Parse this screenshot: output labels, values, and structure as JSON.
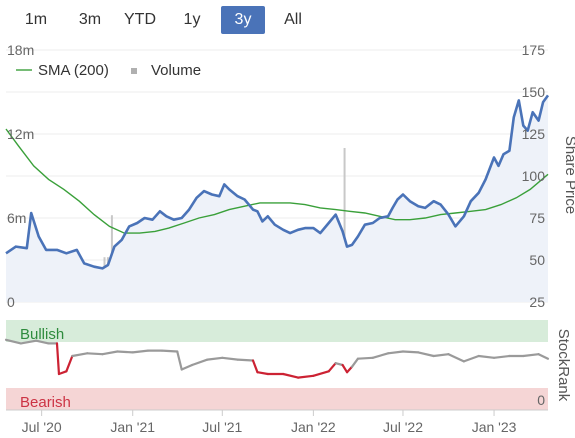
{
  "range_tabs": {
    "items": [
      {
        "label": "1m",
        "active": false
      },
      {
        "label": "3m",
        "active": false
      },
      {
        "label": "YTD",
        "active": false
      },
      {
        "label": "1y",
        "active": false
      },
      {
        "label": "3y",
        "active": true
      },
      {
        "label": "All",
        "active": false
      }
    ]
  },
  "legend": {
    "sma_label": "SMA (200)",
    "volume_label": "Volume"
  },
  "colors": {
    "price_line": "#4a73b8",
    "price_fill": "#eef2f9",
    "sma_line": "#3aa03a",
    "volume_bar": "#c8c8c8",
    "rank_line": "#9a9a9a",
    "rank_low": "#cc2233",
    "bullish_band": "#d7ecda",
    "bearish_band": "#f5d5d5",
    "bullish_text": "#2e8b3d",
    "bearish_text": "#cc3344",
    "active_tab": "#4a73b8"
  },
  "chart_data": [
    {
      "type": "line",
      "title": "",
      "ylabel": "Share Price",
      "ylabel_right": "Share Price",
      "ylabel_left": "Volume",
      "xlabel": "",
      "x_ticks": [
        "Jul '20",
        "Jan '21",
        "Jul '21",
        "Jan '22",
        "Jul '22",
        "Jan '23"
      ],
      "x_tick_dates": [
        "2020-07-01",
        "2021-01-01",
        "2021-07-01",
        "2022-01-01",
        "2022-07-01",
        "2023-01-01"
      ],
      "x_range": [
        "2020-04-20",
        "2023-04-20"
      ],
      "y_ticks_right": [
        25,
        50,
        75,
        100,
        125,
        150,
        175
      ],
      "ylim": [
        25,
        175
      ],
      "y_ticks_left": [
        "0",
        "6m",
        "12m",
        "18m"
      ],
      "ylim_left": [
        0,
        18000000
      ],
      "grid": true,
      "legend_position": "top-left",
      "series": [
        {
          "name": "",
          "role": "price",
          "points": [
            [
              "2020-04-20",
              54
            ],
            [
              "2020-05-10",
              58
            ],
            [
              "2020-06-01",
              57
            ],
            [
              "2020-06-10",
              78
            ],
            [
              "2020-06-25",
              64
            ],
            [
              "2020-07-10",
              56
            ],
            [
              "2020-08-01",
              56
            ],
            [
              "2020-08-20",
              54
            ],
            [
              "2020-09-10",
              56
            ],
            [
              "2020-09-25",
              48
            ],
            [
              "2020-10-15",
              46
            ],
            [
              "2020-11-01",
              45
            ],
            [
              "2020-11-12",
              47
            ],
            [
              "2020-11-25",
              58
            ],
            [
              "2020-12-10",
              62
            ],
            [
              "2020-12-25",
              70
            ],
            [
              "2021-01-10",
              72
            ],
            [
              "2021-01-25",
              75
            ],
            [
              "2021-02-10",
              74
            ],
            [
              "2021-02-25",
              79
            ],
            [
              "2021-03-10",
              76
            ],
            [
              "2021-03-25",
              74
            ],
            [
              "2021-04-10",
              75
            ],
            [
              "2021-04-25",
              80
            ],
            [
              "2021-05-10",
              87
            ],
            [
              "2021-05-25",
              91
            ],
            [
              "2021-06-10",
              89
            ],
            [
              "2021-06-25",
              88
            ],
            [
              "2021-07-05",
              95
            ],
            [
              "2021-07-15",
              92
            ],
            [
              "2021-08-01",
              88
            ],
            [
              "2021-08-15",
              86
            ],
            [
              "2021-09-01",
              80
            ],
            [
              "2021-09-10",
              79
            ],
            [
              "2021-09-20",
              73
            ],
            [
              "2021-10-01",
              76
            ],
            [
              "2021-10-15",
              71
            ],
            [
              "2021-11-01",
              68
            ],
            [
              "2021-11-15",
              66
            ],
            [
              "2021-12-01",
              68
            ],
            [
              "2021-12-15",
              69
            ],
            [
              "2022-01-01",
              69
            ],
            [
              "2022-01-15",
              66
            ],
            [
              "2022-02-01",
              72
            ],
            [
              "2022-02-15",
              77
            ],
            [
              "2022-03-01",
              67
            ],
            [
              "2022-03-10",
              58
            ],
            [
              "2022-03-20",
              59
            ],
            [
              "2022-04-01",
              64
            ],
            [
              "2022-04-15",
              71
            ],
            [
              "2022-05-01",
              72
            ],
            [
              "2022-05-15",
              75
            ],
            [
              "2022-06-01",
              76
            ],
            [
              "2022-06-10",
              81
            ],
            [
              "2022-06-20",
              86
            ],
            [
              "2022-07-01",
              89
            ],
            [
              "2022-07-15",
              85
            ],
            [
              "2022-08-01",
              82
            ],
            [
              "2022-08-15",
              81
            ],
            [
              "2022-09-01",
              85
            ],
            [
              "2022-09-15",
              83
            ],
            [
              "2022-10-01",
              77
            ],
            [
              "2022-10-15",
              70
            ],
            [
              "2022-11-01",
              76
            ],
            [
              "2022-11-15",
              85
            ],
            [
              "2022-12-01",
              90
            ],
            [
              "2022-12-15",
              98
            ],
            [
              "2023-01-01",
              111
            ],
            [
              "2023-01-10",
              106
            ],
            [
              "2023-01-20",
              113
            ],
            [
              "2023-02-01",
              115
            ],
            [
              "2023-02-10",
              135
            ],
            [
              "2023-02-20",
              145
            ],
            [
              "2023-03-01",
              130
            ],
            [
              "2023-03-10",
              127
            ],
            [
              "2023-03-20",
              138
            ],
            [
              "2023-04-01",
              133
            ],
            [
              "2023-04-10",
              144
            ],
            [
              "2023-04-20",
              148
            ]
          ]
        },
        {
          "name": "SMA (200)",
          "role": "sma",
          "points": [
            [
              "2020-04-20",
              128
            ],
            [
              "2020-05-15",
              118
            ],
            [
              "2020-06-15",
              106
            ],
            [
              "2020-07-15",
              98
            ],
            [
              "2020-08-15",
              92
            ],
            [
              "2020-09-15",
              85
            ],
            [
              "2020-10-15",
              77
            ],
            [
              "2020-11-15",
              70
            ],
            [
              "2020-12-15",
              66
            ],
            [
              "2021-01-15",
              66
            ],
            [
              "2021-02-15",
              67
            ],
            [
              "2021-03-15",
              69
            ],
            [
              "2021-04-15",
              72
            ],
            [
              "2021-05-15",
              75
            ],
            [
              "2021-06-15",
              77
            ],
            [
              "2021-07-15",
              80
            ],
            [
              "2021-08-15",
              82
            ],
            [
              "2021-09-15",
              84
            ],
            [
              "2021-10-15",
              84
            ],
            [
              "2021-11-15",
              84
            ],
            [
              "2021-12-15",
              83
            ],
            [
              "2022-01-15",
              81
            ],
            [
              "2022-02-15",
              80
            ],
            [
              "2022-03-15",
              79
            ],
            [
              "2022-04-15",
              78
            ],
            [
              "2022-05-15",
              76
            ],
            [
              "2022-06-15",
              74
            ],
            [
              "2022-07-15",
              74
            ],
            [
              "2022-08-15",
              75
            ],
            [
              "2022-09-15",
              77
            ],
            [
              "2022-10-15",
              78
            ],
            [
              "2022-11-15",
              79
            ],
            [
              "2022-12-15",
              80
            ],
            [
              "2023-01-15",
              83
            ],
            [
              "2023-02-15",
              87
            ],
            [
              "2023-03-15",
              92
            ],
            [
              "2023-04-20",
              101
            ]
          ]
        },
        {
          "name": "Volume",
          "role": "volume",
          "points": [
            [
              "2020-05-20",
              1500000
            ],
            [
              "2020-07-05",
              2500000
            ],
            [
              "2020-09-05",
              1200000
            ],
            [
              "2020-10-20",
              2200000
            ],
            [
              "2020-11-05",
              3200000
            ],
            [
              "2020-11-12",
              3200000
            ],
            [
              "2020-11-20",
              6200000
            ],
            [
              "2020-12-05",
              1300000
            ],
            [
              "2021-03-10",
              1200000
            ],
            [
              "2021-05-10",
              1300000
            ],
            [
              "2021-07-05",
              1500000
            ],
            [
              "2021-08-10",
              1000000
            ],
            [
              "2021-10-15",
              1200000
            ],
            [
              "2021-12-20",
              1400000
            ],
            [
              "2022-02-05",
              1300000
            ],
            [
              "2022-03-05",
              11000000
            ],
            [
              "2022-03-12",
              3500000
            ],
            [
              "2022-04-20",
              1200000
            ],
            [
              "2022-06-20",
              1400000
            ],
            [
              "2022-09-20",
              1000000
            ],
            [
              "2022-11-10",
              1200000
            ],
            [
              "2023-02-05",
              1300000
            ],
            [
              "2023-02-15",
              6800000
            ],
            [
              "2023-02-25",
              3000000
            ],
            [
              "2023-03-10",
              1500000
            ]
          ]
        }
      ]
    },
    {
      "type": "line",
      "title": "",
      "ylabel": "StockRank",
      "ylim": [
        0,
        100
      ],
      "y_ticks_right": [
        0
      ],
      "zones": [
        {
          "label": "Bullish",
          "from": 95,
          "to": 100
        },
        {
          "label": "Bearish",
          "from": 0,
          "to": 40
        }
      ],
      "low_threshold": 45,
      "series": [
        {
          "name": "",
          "role": "stockrank",
          "points": [
            [
              "2020-04-20",
              78
            ],
            [
              "2020-05-20",
              74
            ],
            [
              "2020-06-20",
              77
            ],
            [
              "2020-07-15",
              74
            ],
            [
              "2020-08-01",
              74
            ],
            [
              "2020-08-05",
              40
            ],
            [
              "2020-08-20",
              43
            ],
            [
              "2020-09-01",
              60
            ],
            [
              "2020-10-01",
              63
            ],
            [
              "2020-11-01",
              62
            ],
            [
              "2020-12-01",
              65
            ],
            [
              "2021-01-01",
              64
            ],
            [
              "2021-02-01",
              66
            ],
            [
              "2021-03-01",
              66
            ],
            [
              "2021-04-01",
              65
            ],
            [
              "2021-04-10",
              45
            ],
            [
              "2021-05-01",
              50
            ],
            [
              "2021-06-01",
              56
            ],
            [
              "2021-07-01",
              58
            ],
            [
              "2021-08-01",
              56
            ],
            [
              "2021-09-01",
              55
            ],
            [
              "2021-09-10",
              42
            ],
            [
              "2021-10-01",
              40
            ],
            [
              "2021-11-01",
              40
            ],
            [
              "2021-12-01",
              36
            ],
            [
              "2022-01-01",
              38
            ],
            [
              "2022-02-01",
              43
            ],
            [
              "2022-02-15",
              52
            ],
            [
              "2022-03-01",
              50
            ],
            [
              "2022-03-10",
              42
            ],
            [
              "2022-03-20",
              48
            ],
            [
              "2022-04-01",
              57
            ],
            [
              "2022-05-01",
              58
            ],
            [
              "2022-06-01",
              63
            ],
            [
              "2022-07-01",
              65
            ],
            [
              "2022-08-01",
              64
            ],
            [
              "2022-09-01",
              60
            ],
            [
              "2022-10-01",
              62
            ],
            [
              "2022-11-01",
              54
            ],
            [
              "2022-12-01",
              60
            ],
            [
              "2023-01-01",
              58
            ],
            [
              "2023-02-01",
              60
            ],
            [
              "2023-03-01",
              60
            ],
            [
              "2023-04-01",
              62
            ],
            [
              "2023-04-20",
              57
            ]
          ]
        }
      ],
      "y_tick_labels_right": [
        "0"
      ]
    }
  ]
}
